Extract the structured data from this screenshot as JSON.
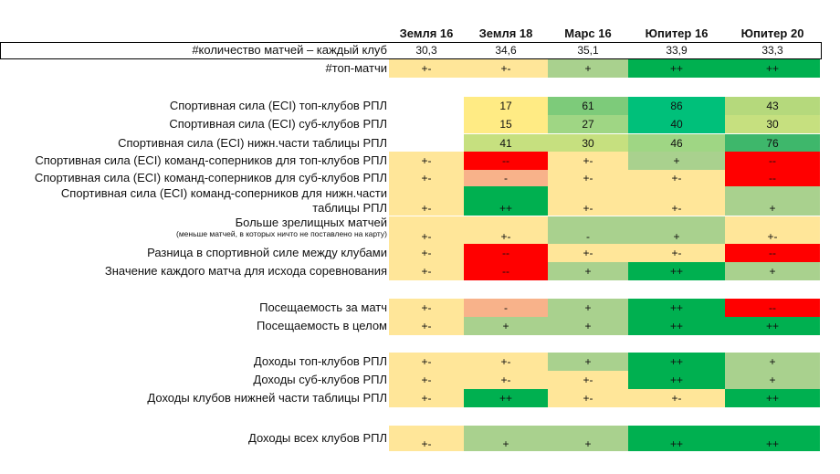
{
  "columns": [
    "Земля 16",
    "Земля 18",
    "Марс 16",
    "Юпитер 16",
    "Юпитер 20"
  ],
  "palette": {
    "y": "#FFE699",
    "b": "#FFEB84",
    "lg": "#A9D18E",
    "g": "#00B050",
    "r": "#FF0000",
    "o": "#F8B28A",
    "w": "#FFFFFF",
    "hl": "#C6E07F",
    "mg": "#7DCB7A",
    "tg": "#00C07A",
    "mg2": "#9FD684",
    "g43": "#B5D97C",
    "g76": "#3EB76B",
    "tbl": "#6EC57A"
  },
  "rows": [
    {
      "label": "#количество матчей – каждый клуб",
      "cells": [
        [
          "30,3",
          "w"
        ],
        [
          "34,6",
          "w"
        ],
        [
          "35,1",
          "w"
        ],
        [
          "33,9",
          "w"
        ],
        [
          "33,3",
          "w"
        ]
      ]
    },
    {
      "label": "#топ-матчи",
      "cells": [
        [
          "+-",
          "y"
        ],
        [
          "+-",
          "y"
        ],
        [
          "+",
          "lg"
        ],
        [
          "++",
          "g"
        ],
        [
          "++",
          "g"
        ]
      ]
    },
    {
      "label": "Спортивная сила (ECI) топ-клубов РПЛ",
      "cells": [
        [
          "",
          "w"
        ],
        [
          "17",
          "b"
        ],
        [
          "61",
          "mg"
        ],
        [
          "86",
          "tg"
        ],
        [
          "43",
          "g43"
        ]
      ]
    },
    {
      "label": "Спортивная сила (ECI) суб-клубов РПЛ",
      "cells": [
        [
          "",
          "w"
        ],
        [
          "15",
          "b"
        ],
        [
          "27",
          "mg2"
        ],
        [
          "40",
          "tg"
        ],
        [
          "30",
          "hl"
        ]
      ]
    },
    {
      "label": "Спортивная сила (ECI) нижн.части таблицы РПЛ",
      "cells": [
        [
          "",
          "w"
        ],
        [
          "41",
          "hl"
        ],
        [
          "30",
          "hl"
        ],
        [
          "46",
          "mg2"
        ],
        [
          "76",
          "g76"
        ]
      ]
    },
    {
      "label": "Спортивная сила (ECI) команд-соперников для топ-клубов РПЛ",
      "cells": [
        [
          "+-",
          "y"
        ],
        [
          "--",
          "r"
        ],
        [
          "+-",
          "y"
        ],
        [
          "+",
          "lg"
        ],
        [
          "--",
          "r"
        ]
      ]
    },
    {
      "label": "Спортивная сила (ECI) команд-соперников для суб-клубов РПЛ",
      "cells": [
        [
          "+-",
          "y"
        ],
        [
          "-",
          "o"
        ],
        [
          "+-",
          "y"
        ],
        [
          "+-",
          "y"
        ],
        [
          "--",
          "r"
        ]
      ]
    },
    {
      "label": "Спортивная сила (ECI) команд-соперников для нижн.части",
      "label2": "таблицы РПЛ",
      "cells": [
        [
          "+-",
          "y"
        ],
        [
          "++",
          "g"
        ],
        [
          "+-",
          "y"
        ],
        [
          "+-",
          "y"
        ],
        [
          "+",
          "lg"
        ]
      ]
    },
    {
      "label": "Больше зрелищных матчей",
      "sub": "(меньше матчей, в которых ничто не поставлено на карту)",
      "cells": [
        [
          "+-",
          "y"
        ],
        [
          "+-",
          "y"
        ],
        [
          "-",
          "lg"
        ],
        [
          "+",
          "lg"
        ],
        [
          "+-",
          "y"
        ]
      ]
    },
    {
      "label": "Разница в спортивной силе между клубами",
      "cells": [
        [
          "+-",
          "y"
        ],
        [
          "--",
          "r"
        ],
        [
          "+-",
          "y"
        ],
        [
          "+-",
          "y"
        ],
        [
          "--",
          "r"
        ]
      ]
    },
    {
      "label": "Значение каждого матча для исхода соревнования",
      "cells": [
        [
          "+-",
          "y"
        ],
        [
          "--",
          "r"
        ],
        [
          "+",
          "lg"
        ],
        [
          "++",
          "g"
        ],
        [
          "+",
          "lg"
        ]
      ]
    },
    {
      "label": "Посещаемость за матч",
      "cells": [
        [
          "+-",
          "y"
        ],
        [
          "-",
          "o"
        ],
        [
          "+",
          "lg"
        ],
        [
          "++",
          "g"
        ],
        [
          "--",
          "r"
        ]
      ]
    },
    {
      "label": "Посещаемость в целом",
      "cells": [
        [
          "+-",
          "y"
        ],
        [
          "+",
          "lg"
        ],
        [
          "+",
          "lg"
        ],
        [
          "++",
          "g"
        ],
        [
          "++",
          "g"
        ]
      ]
    },
    {
      "label": "Доходы топ-клубов РПЛ",
      "cells": [
        [
          "+-",
          "y"
        ],
        [
          "+-",
          "y"
        ],
        [
          "+",
          "lg"
        ],
        [
          "++",
          "g"
        ],
        [
          "+",
          "lg"
        ]
      ]
    },
    {
      "label": "Доходы суб-клубов РПЛ",
      "cells": [
        [
          "+-",
          "y"
        ],
        [
          "+-",
          "y"
        ],
        [
          "+-",
          "y"
        ],
        [
          "++",
          "g"
        ],
        [
          "+",
          "lg"
        ]
      ]
    },
    {
      "label": "Доходы клубов нижней части таблицы РПЛ",
      "cells": [
        [
          "+-",
          "y"
        ],
        [
          "++",
          "g"
        ],
        [
          "+-",
          "y"
        ],
        [
          "+-",
          "y"
        ],
        [
          "++",
          "g"
        ]
      ]
    },
    {
      "label": "Доходы всех клубов РПЛ",
      "cells": [
        [
          "+-",
          "y"
        ],
        [
          "+",
          "lg"
        ],
        [
          "+",
          "lg"
        ],
        [
          "++",
          "g"
        ],
        [
          "++",
          "g"
        ]
      ]
    }
  ]
}
